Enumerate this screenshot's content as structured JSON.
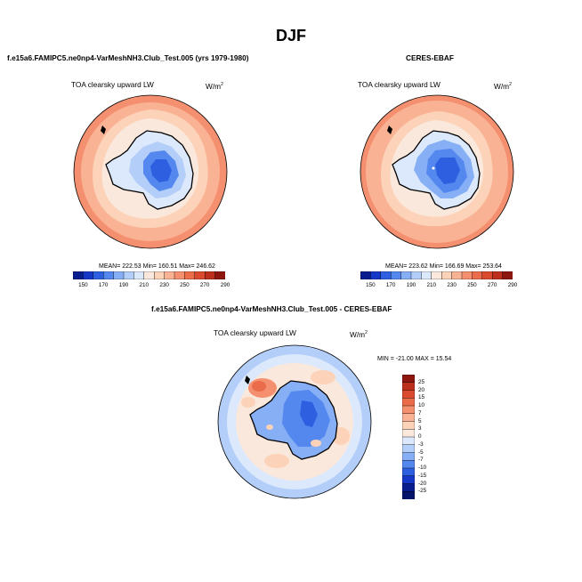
{
  "title": "DJF",
  "left_panel": {
    "case_title": "f.e15a6.FAMIPC5.ne0np4-VarMeshNH3.Club_Test.005 (yrs 1979-1980)",
    "variable": "TOA clearsky upward LW",
    "units": "W/m",
    "units_sup": "2",
    "stats": "MEAN= 222.53  Min= 160.51  Max= 246.62"
  },
  "right_panel": {
    "case_title": "CERES-EBAF",
    "variable": "TOA clearsky upward LW",
    "units": "W/m",
    "units_sup": "2",
    "stats": "MEAN= 223.62  Min= 166.69  Max= 253.64"
  },
  "diff_panel": {
    "case_title": "f.e15a6.FAMIPC5.ne0np4-VarMeshNH3.Club_Test.005 - CERES-EBAF",
    "variable": "TOA clearsky upward LW",
    "units": "W/m",
    "units_sup": "2",
    "minmax": "MIN = -21.00 MAX =  15.54"
  },
  "chart_data": [
    {
      "type": "heatmap",
      "projection": "south-polar-stereographic",
      "title": "TOA clearsky upward LW",
      "subtitle": "f.e15a6.FAMIPC5.ne0np4-VarMeshNH3.Club_Test.005 (yrs 1979-1980)",
      "mean": 222.53,
      "min": 160.51,
      "max": 246.62,
      "colorbar": {
        "orientation": "horizontal",
        "labels": [
          "150",
          "170",
          "190",
          "210",
          "230",
          "250",
          "270",
          "290"
        ],
        "colors": [
          "#0a1d8f",
          "#1437c8",
          "#2d5fe0",
          "#5588ee",
          "#86aff5",
          "#b3cef8",
          "#dce8fb",
          "#fbe8dc",
          "#fcd2b8",
          "#f9b394",
          "#f4906f",
          "#ea6c4b",
          "#d94a2f",
          "#bb2f1c",
          "#8d170f"
        ]
      }
    },
    {
      "type": "heatmap",
      "projection": "south-polar-stereographic",
      "title": "TOA clearsky upward LW",
      "subtitle": "CERES-EBAF",
      "mean": 223.62,
      "min": 166.69,
      "max": 253.64,
      "colorbar": {
        "orientation": "horizontal",
        "labels": [
          "150",
          "170",
          "190",
          "210",
          "230",
          "250",
          "270",
          "290"
        ],
        "colors": [
          "#0a1d8f",
          "#1437c8",
          "#2d5fe0",
          "#5588ee",
          "#86aff5",
          "#b3cef8",
          "#dce8fb",
          "#fbe8dc",
          "#fcd2b8",
          "#f9b394",
          "#f4906f",
          "#ea6c4b",
          "#d94a2f",
          "#bb2f1c",
          "#8d170f"
        ]
      }
    },
    {
      "type": "heatmap",
      "projection": "south-polar-stereographic",
      "title": "TOA clearsky upward LW",
      "subtitle": "f.e15a6.FAMIPC5.ne0np4-VarMeshNH3.Club_Test.005 - CERES-EBAF",
      "min": -21.0,
      "max": 15.54,
      "colorbar": {
        "orientation": "vertical",
        "labels": [
          "25",
          "20",
          "15",
          "10",
          "7",
          "5",
          "3",
          "0",
          "-3",
          "-5",
          "-7",
          "-10",
          "-15",
          "-20",
          "-25"
        ],
        "colors": [
          "#8d170f",
          "#bb2f1c",
          "#d94a2f",
          "#ea6c4b",
          "#f4906f",
          "#f9b394",
          "#fcd2b8",
          "#fbe8dc",
          "#dce8fb",
          "#b3cef8",
          "#86aff5",
          "#5588ee",
          "#2d5fe0",
          "#1437c8",
          "#0a1d8f",
          "#06146a"
        ]
      }
    }
  ]
}
